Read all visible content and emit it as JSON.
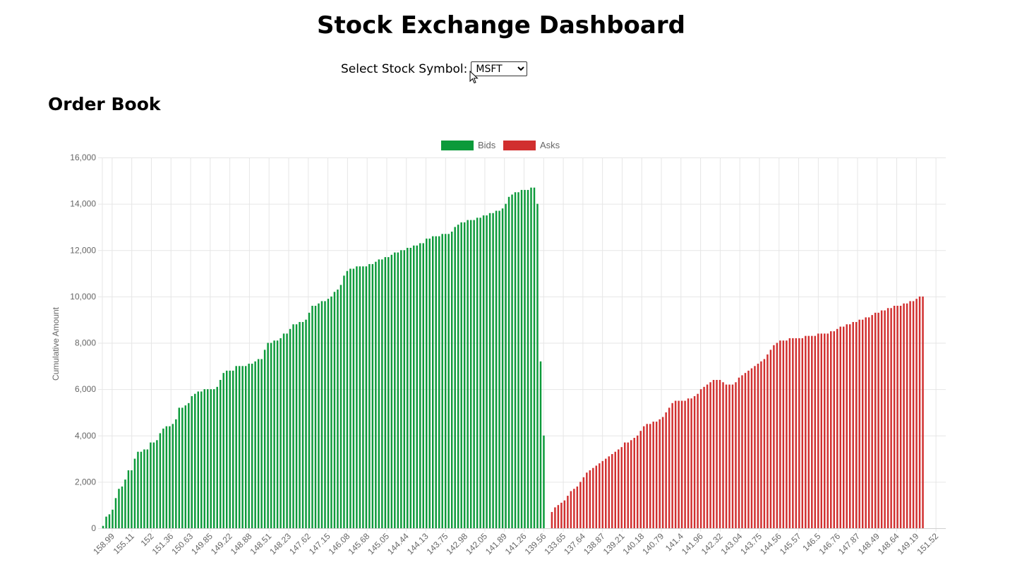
{
  "header": {
    "title": "Stock Exchange Dashboard"
  },
  "symbol_selector": {
    "label": "Select Stock Symbol:",
    "selected": "MSFT"
  },
  "order_book": {
    "title": "Order Book"
  },
  "colors": {
    "bids": "#0c9a3a",
    "asks": "#d12f2f",
    "grid": "#e6e6e6"
  },
  "chart_data": {
    "type": "bar",
    "legend": [
      "Bids",
      "Asks"
    ],
    "legend_position": "top",
    "ylabel": "Cumulative Amount",
    "xlabel": "",
    "ylim": [
      0,
      16000
    ],
    "yticks": [
      0,
      2000,
      4000,
      6000,
      8000,
      10000,
      12000,
      14000,
      16000
    ],
    "x_tick_labels": [
      "158.99",
      "155.11",
      "152",
      "151.36",
      "150.63",
      "149.85",
      "149.22",
      "148.88",
      "148.51",
      "148.23",
      "147.62",
      "147.15",
      "146.08",
      "145.68",
      "145.05",
      "144.44",
      "144.13",
      "143.75",
      "142.98",
      "142.05",
      "141.89",
      "141.26",
      "139.56",
      "133.65",
      "137.64",
      "138.87",
      "139.21",
      "140.18",
      "140.79",
      "141.4",
      "141.96",
      "142.32",
      "143.04",
      "143.75",
      "144.56",
      "145.57",
      "146.5",
      "146.76",
      "147.87",
      "148.49",
      "148.64",
      "149.19",
      "151.52"
    ],
    "grid": true,
    "series": [
      {
        "name": "Bids",
        "values": [
          100,
          500,
          600,
          800,
          1300,
          1700,
          1800,
          2100,
          2500,
          2500,
          3000,
          3300,
          3300,
          3400,
          3400,
          3700,
          3700,
          3800,
          4100,
          4300,
          4400,
          4400,
          4500,
          4700,
          5200,
          5200,
          5300,
          5400,
          5700,
          5800,
          5900,
          5900,
          6000,
          6000,
          6000,
          6000,
          6100,
          6400,
          6700,
          6800,
          6800,
          6800,
          7000,
          7000,
          7000,
          7000,
          7100,
          7100,
          7200,
          7300,
          7300,
          7700,
          8000,
          8000,
          8100,
          8100,
          8200,
          8400,
          8400,
          8600,
          8800,
          8800,
          8900,
          8900,
          9000,
          9300,
          9600,
          9600,
          9700,
          9800,
          9800,
          9900,
          10000,
          10200,
          10300,
          10500,
          10900,
          11100,
          11200,
          11200,
          11300,
          11300,
          11300,
          11300,
          11400,
          11400,
          11500,
          11600,
          11600,
          11700,
          11700,
          11800,
          11900,
          11900,
          12000,
          12000,
          12100,
          12100,
          12200,
          12200,
          12300,
          12300,
          12500,
          12500,
          12600,
          12600,
          12600,
          12700,
          12700,
          12700,
          12800,
          13000,
          13100,
          13200,
          13200,
          13300,
          13300,
          13300,
          13400,
          13400,
          13500,
          13500,
          13600,
          13600,
          13700,
          13700,
          13800,
          14000,
          14300,
          14400,
          14500,
          14500,
          14600,
          14600,
          14600,
          14700,
          14700,
          14000,
          7200,
          4000,
          0,
          0,
          0,
          0,
          0,
          0,
          0,
          0,
          0,
          0,
          0,
          0,
          0,
          0,
          0,
          0,
          0,
          0,
          0,
          0,
          0,
          0,
          0,
          0,
          0,
          0,
          0,
          0,
          0,
          0,
          0,
          0,
          0,
          0,
          0,
          0,
          0,
          0,
          0,
          0,
          0,
          0,
          0,
          0,
          0,
          0,
          0,
          0,
          0,
          0,
          0,
          0,
          0,
          0,
          0,
          0,
          0,
          0,
          0,
          0,
          0,
          0,
          0,
          0,
          0,
          0,
          0,
          0,
          0,
          0,
          0,
          0,
          0,
          0,
          0,
          0,
          0,
          0,
          0,
          0,
          0,
          0,
          0,
          0,
          0,
          0,
          0,
          0,
          0,
          0,
          0,
          0,
          0,
          0,
          0,
          0,
          0,
          0,
          0,
          0,
          0,
          0,
          0,
          0,
          0,
          0,
          0,
          0,
          0,
          0,
          0,
          0,
          0,
          0,
          0,
          0,
          0,
          0,
          0,
          0,
          0,
          0,
          0,
          0,
          0,
          0
        ]
      },
      {
        "name": "Asks",
        "values": [
          0,
          0,
          0,
          0,
          0,
          0,
          0,
          0,
          0,
          0,
          0,
          0,
          0,
          0,
          0,
          0,
          0,
          0,
          0,
          0,
          0,
          0,
          0,
          0,
          0,
          0,
          0,
          0,
          0,
          0,
          0,
          0,
          0,
          0,
          0,
          0,
          0,
          0,
          0,
          0,
          0,
          0,
          0,
          0,
          0,
          0,
          0,
          0,
          0,
          0,
          0,
          0,
          0,
          0,
          0,
          0,
          0,
          0,
          0,
          0,
          0,
          0,
          0,
          0,
          0,
          0,
          0,
          0,
          0,
          0,
          0,
          0,
          0,
          0,
          0,
          0,
          0,
          0,
          0,
          0,
          0,
          0,
          0,
          0,
          0,
          0,
          0,
          0,
          0,
          0,
          0,
          0,
          0,
          0,
          0,
          0,
          0,
          0,
          0,
          0,
          0,
          0,
          0,
          0,
          0,
          0,
          0,
          0,
          0,
          0,
          0,
          0,
          0,
          0,
          0,
          0,
          0,
          0,
          0,
          0,
          0,
          0,
          0,
          0,
          0,
          0,
          0,
          0,
          0,
          0,
          0,
          0,
          0,
          0,
          0,
          0,
          0,
          0,
          0,
          0,
          0,
          700,
          900,
          1000,
          1100,
          1200,
          1400,
          1600,
          1700,
          1800,
          2000,
          2200,
          2400,
          2500,
          2600,
          2700,
          2800,
          2900,
          3000,
          3100,
          3200,
          3300,
          3400,
          3500,
          3700,
          3700,
          3800,
          3900,
          4000,
          4200,
          4400,
          4500,
          4500,
          4600,
          4600,
          4700,
          4800,
          5000,
          5200,
          5400,
          5500,
          5500,
          5500,
          5500,
          5600,
          5600,
          5700,
          5800,
          6000,
          6100,
          6200,
          6300,
          6400,
          6400,
          6400,
          6300,
          6200,
          6200,
          6200,
          6300,
          6500,
          6600,
          6700,
          6800,
          6900,
          7000,
          7100,
          7200,
          7300,
          7500,
          7700,
          7900,
          8000,
          8100,
          8100,
          8100,
          8200,
          8200,
          8200,
          8200,
          8200,
          8300,
          8300,
          8300,
          8300,
          8400,
          8400,
          8400,
          8400,
          8500,
          8500,
          8600,
          8700,
          8700,
          8800,
          8800,
          8900,
          8900,
          9000,
          9000,
          9100,
          9100,
          9200,
          9300,
          9300,
          9400,
          9400,
          9500,
          9500,
          9600,
          9600,
          9600,
          9700,
          9700,
          9800,
          9800,
          9900,
          10000,
          10000
        ]
      }
    ]
  }
}
